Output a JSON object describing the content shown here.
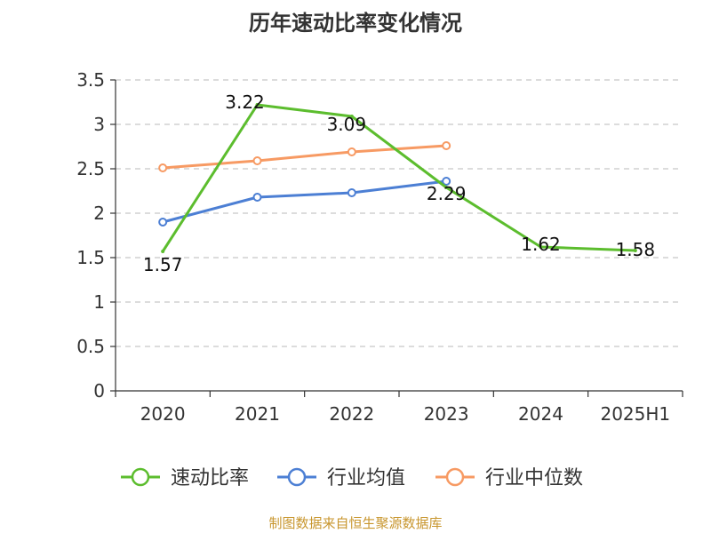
{
  "chart_data": {
    "type": "line",
    "title": "历年速动比率变化情况",
    "categories": [
      "2020",
      "2021",
      "2022",
      "2023",
      "2024",
      "2025H1"
    ],
    "series": [
      {
        "name": "速动比率",
        "color": "#5cbd2e",
        "values": [
          1.57,
          3.22,
          3.09,
          2.29,
          1.62,
          1.58
        ],
        "labels": [
          "1.57",
          "3.22",
          "3.09",
          "2.29",
          "1.62",
          "1.58"
        ]
      },
      {
        "name": "行业均值",
        "color": "#4c7fd4",
        "values": [
          1.9,
          2.18,
          2.23,
          2.36,
          null,
          null
        ]
      },
      {
        "name": "行业中位数",
        "color": "#f79a63",
        "values": [
          2.51,
          2.59,
          2.69,
          2.76,
          null,
          null
        ]
      }
    ],
    "yticks": [
      "0",
      "0.5",
      "1",
      "1.5",
      "2",
      "2.5",
      "3",
      "3.5"
    ],
    "ylim": [
      0,
      3.5
    ],
    "grid": true,
    "legend": "bottom"
  },
  "source": "制图数据来自恒生聚源数据库"
}
